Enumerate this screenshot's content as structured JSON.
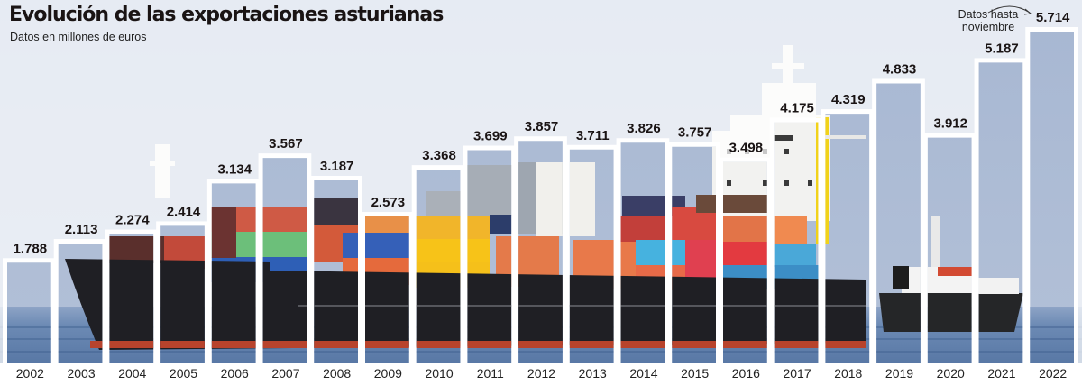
{
  "header": {
    "title": "Evolución de las exportaciones asturianas",
    "subtitle": "Datos en millones de euros",
    "note": "Datos hasta noviembre"
  },
  "colors": {
    "background_sky": "#e9edf3",
    "bar_sky": "#a9b9d3",
    "bar_frame": "#ffffff",
    "text": "#1a1414",
    "sea": "#5b7aa6"
  },
  "chart_data": {
    "type": "bar",
    "title": "Evolución de las exportaciones asturianas",
    "subtitle": "Datos en millones de euros",
    "xlabel": "",
    "ylabel": "Millones de euros",
    "ylim": [
      0,
      5.714
    ],
    "grid": false,
    "legend": "none",
    "categories": [
      "2002",
      "2003",
      "2004",
      "2005",
      "2006",
      "2007",
      "2008",
      "2009",
      "2010",
      "2011",
      "2012",
      "2013",
      "2014",
      "2015",
      "2016",
      "2017",
      "2018",
      "2019",
      "2020",
      "2021",
      "2022"
    ],
    "values": [
      1.788,
      2.113,
      2.274,
      2.414,
      3.134,
      3.567,
      3.187,
      2.573,
      3.368,
      3.699,
      3.857,
      3.711,
      3.826,
      3.757,
      3.498,
      4.175,
      4.319,
      4.833,
      3.912,
      5.187,
      5.714
    ],
    "value_labels": [
      "1.788",
      "2.113",
      "2.274",
      "2.414",
      "3.134",
      "3.567",
      "3.187",
      "2.573",
      "3.368",
      "3.699",
      "3.857",
      "3.711",
      "3.826",
      "3.757",
      "3.498",
      "4.175",
      "4.319",
      "4.833",
      "3.912",
      "5.187",
      "5.714"
    ],
    "annotations": [
      {
        "category": "2022",
        "text": "Datos hasta noviembre"
      }
    ]
  }
}
